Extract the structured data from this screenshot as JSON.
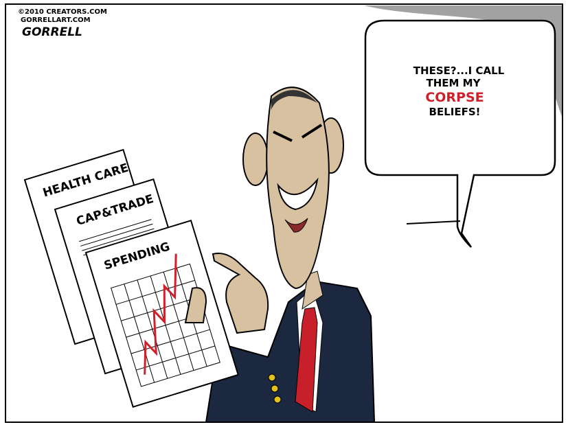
{
  "credits": {
    "copyright": "©2010 CREATORS.COM",
    "website": "GORRELLART.COM",
    "signature": "GORRELL"
  },
  "speech_bubble": {
    "lines": [
      "THESE?...I CALL",
      "THEM MY",
      "CORPSE",
      "BELIEFS!"
    ]
  },
  "papers": [
    "HEALTH CARE",
    "CAP&TRADE",
    "SPENDING"
  ]
}
